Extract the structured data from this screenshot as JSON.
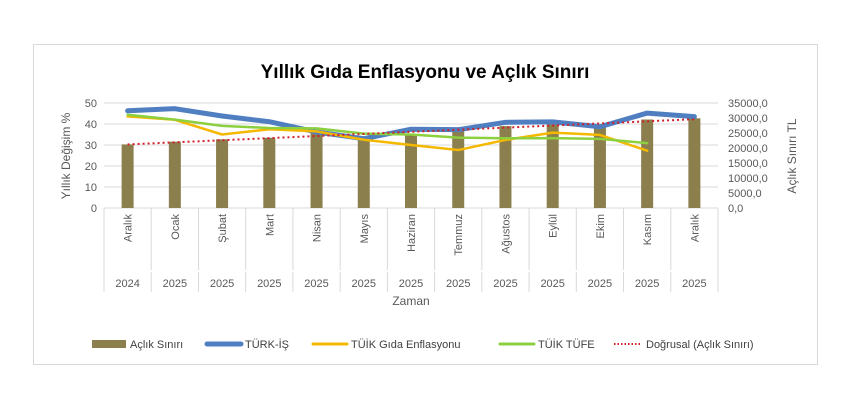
{
  "chart_data": {
    "type": "bar+line",
    "title": "Yıllık Gıda Enflasyonu ve Açlık Sınırı",
    "xlabel": "Zaman",
    "ylabel_left": "Yıllık Değişim %",
    "ylabel_right": "Açlık Sınırı TL",
    "ylim_left": [
      0,
      50
    ],
    "ylim_right": [
      0,
      35000
    ],
    "yticks_left": [
      "0",
      "10",
      "20",
      "30",
      "40",
      "50"
    ],
    "yticks_right": [
      "0,0",
      "5000,0",
      "10000,0",
      "15000,0",
      "20000,0",
      "25000,0",
      "30000,0",
      "35000,0"
    ],
    "grid": true,
    "legend_position": "bottom",
    "categories": [
      {
        "month": "Aralık",
        "year": "2024"
      },
      {
        "month": "Ocak",
        "year": "2025"
      },
      {
        "month": "Şubat",
        "year": "2025"
      },
      {
        "month": "Mart",
        "year": "2025"
      },
      {
        "month": "Nisan",
        "year": "2025"
      },
      {
        "month": "Mayıs",
        "year": "2025"
      },
      {
        "month": "Haziran",
        "year": "2025"
      },
      {
        "month": "Temmuz",
        "year": "2025"
      },
      {
        "month": "Ağustos",
        "year": "2025"
      },
      {
        "month": "Eylül",
        "year": "2025"
      },
      {
        "month": "Ekim",
        "year": "2025"
      },
      {
        "month": "Kasım",
        "year": "2025"
      },
      {
        "month": "Aralık",
        "year": "2025"
      }
    ],
    "bars": {
      "name": "Açlık Sınırı",
      "axis": "right",
      "color": "#8c7f4e",
      "values": [
        21200,
        22100,
        22900,
        23400,
        25400,
        22700,
        24400,
        26000,
        27300,
        28200,
        27100,
        29500,
        29900
      ]
    },
    "series": [
      {
        "name": "TÜRK-İŞ",
        "axis": "left",
        "color": "#4f7fc1",
        "width": 5,
        "values": [
          46.3,
          47.3,
          43.8,
          41.1,
          36.2,
          33.0,
          37.5,
          37.3,
          40.8,
          41.0,
          38.7,
          45.2,
          43.5
        ]
      },
      {
        "name": "TÜİK Gıda Enflasyonu",
        "axis": "left",
        "color": "#f5b800",
        "width": 2.5,
        "values": [
          43.6,
          42.0,
          35.0,
          37.5,
          36.5,
          32.5,
          30.0,
          27.6,
          32.4,
          35.9,
          34.8,
          27.3,
          null
        ]
      },
      {
        "name": "TÜİK TÜFE",
        "axis": "left",
        "color": "#8ccf3f",
        "width": 2.5,
        "values": [
          44.4,
          42.1,
          39.1,
          38.1,
          37.9,
          35.4,
          35.0,
          33.5,
          33.2,
          33.3,
          32.9,
          30.9,
          null
        ]
      }
    ],
    "trendline": {
      "name": "Doğrusal (Açlık Sınırı)",
      "of": "Açlık Sınırı",
      "type": "linear",
      "color": "#d0202a"
    }
  }
}
